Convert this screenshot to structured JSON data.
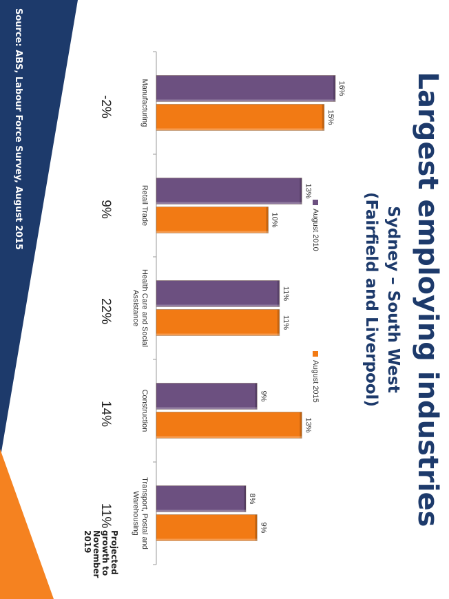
{
  "title": "Largest employing industries",
  "subtitle_line1": "Sydney – South West",
  "subtitle_line2": "(Fairfield and Liverpool)",
  "source": "Source: ABS, Labour Force Survey, August 2015",
  "growth_label": "Projected growth to November 2019",
  "colors": {
    "navy": "#1d3a6b",
    "orange": "#f58220",
    "series_2010": "#6c5080",
    "series_2015": "#f27a14"
  },
  "legend": [
    {
      "label": "August 2010",
      "color": "#6c5080"
    },
    {
      "label": "August 2015",
      "color": "#f27a14"
    }
  ],
  "chart_data": {
    "type": "bar",
    "orientation": "vertical columns (slide rotated 90°)",
    "categories": [
      "Manufacturing",
      "Retail Trade",
      "Health Care and Social Assistance",
      "Construction",
      "Transport, Postal and Warehousing"
    ],
    "series": [
      {
        "name": "August 2010",
        "values": [
          16,
          13,
          11,
          9,
          8
        ],
        "labels": [
          "16%",
          "13%",
          "11%",
          "9%",
          "8%"
        ]
      },
      {
        "name": "August 2015",
        "values": [
          15,
          10,
          11,
          13,
          9
        ],
        "labels": [
          "15%",
          "10%",
          "11%",
          "13%",
          "9%"
        ]
      }
    ],
    "ylim": [
      0,
      16
    ],
    "legend_position": "top",
    "grid": false
  },
  "growth": [
    "-2%",
    "9%",
    "22%",
    "14%",
    "11%"
  ]
}
